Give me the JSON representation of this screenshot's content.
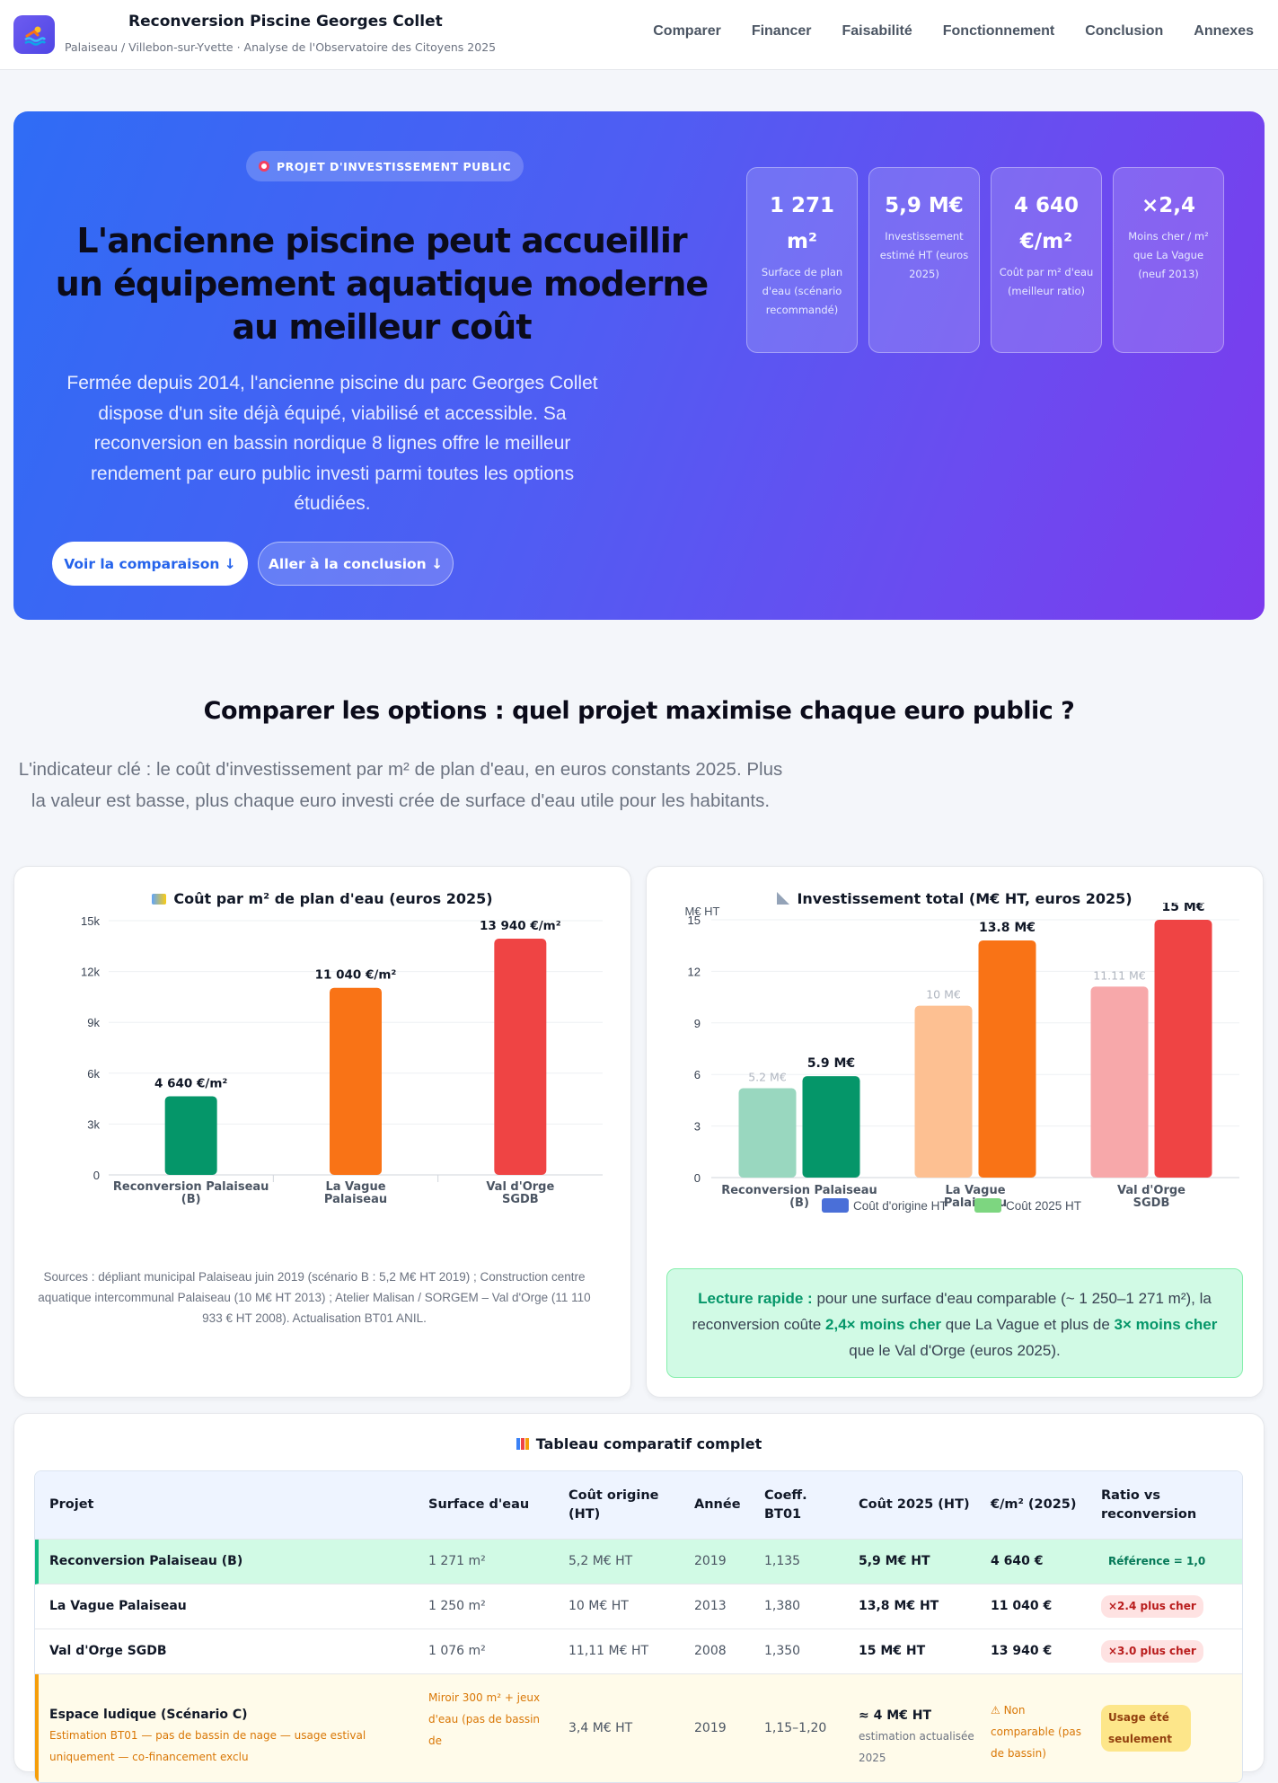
{
  "header": {
    "title": "Reconversion Piscine Georges Collet",
    "subtitle": "Palaiseau / Villebon-sur-Yvette · Analyse de l'Observatoire des Citoyens 2025",
    "nav": [
      "Comparer",
      "Financer",
      "Faisabilité",
      "Fonctionnement",
      "Conclusion",
      "Annexes"
    ]
  },
  "hero": {
    "badge": "PROJET D'INVESTISSEMENT PUBLIC",
    "title": "L'ancienne piscine peut accueillir un équipement aquatique moderne au meilleur coût",
    "text": "Fermée depuis 2014, l'ancienne piscine du parc Georges Collet dispose d'un site déjà équipé, viabilisé et accessible. Sa reconversion en bassin nordique 8 lignes offre le meilleur rendement par euro public investi parmi toutes les options étudiées.",
    "btn_primary": "Voir la comparaison ↓",
    "btn_secondary": "Aller à la conclusion ↓",
    "stats": [
      {
        "value": "1 271 m²",
        "label": "Surface de plan d'eau (scénario recommandé)"
      },
      {
        "value": "5,9 M€",
        "label": "Investissement estimé HT (euros 2025)"
      },
      {
        "value": "4 640 €/m²",
        "label": "Coût par m² d'eau (meilleur ratio)"
      },
      {
        "value": "×2,4",
        "label": "Moins cher / m² que La Vague (neuf 2013)"
      }
    ]
  },
  "compare": {
    "title": "Comparer les options : quel projet maximise chaque euro public ?",
    "subtitle": "L'indicateur clé : le coût d'investissement par m² de plan d'eau, en euros constants 2025. Plus la valeur est basse, plus chaque euro investi crée de surface d'eau utile pour les habitants."
  },
  "chart1_title": "Coût par m² de plan d'eau (euros 2025)",
  "chart2_title": "Investissement total (M€ HT, euros 2025)",
  "chart_data": [
    {
      "type": "bar",
      "title": "Coût par m² de plan d'eau (euros 2025)",
      "categories": [
        "Reconversion Palaiseau (B)",
        "La Vague Palaiseau",
        "Val d'Orge SGDB"
      ],
      "values": [
        4640,
        11040,
        13940
      ],
      "data_labels": [
        "4 640 €/m²",
        "11 040 €/m²",
        "13 940 €/m²"
      ],
      "colors": [
        "#059669",
        "#f97316",
        "#ef4444"
      ],
      "ylim": [
        0,
        15000
      ],
      "yticks": [
        "0",
        "3k",
        "6k",
        "9k",
        "12k",
        "15k"
      ]
    },
    {
      "type": "bar",
      "title": "Investissement total (M€ HT, euros 2025)",
      "ylabel": "M€ HT",
      "categories": [
        "Reconversion Palaiseau (B)",
        "La Vague Palaiseau",
        "Val d'Orge SGDB"
      ],
      "series": [
        {
          "name": "Coût d'origine HT",
          "values": [
            5.2,
            10,
            11.11
          ],
          "labels": [
            "5.2 M€",
            "10 M€",
            "11.11 M€"
          ]
        },
        {
          "name": "Coût 2025 HT",
          "values": [
            5.9,
            13.8,
            15
          ],
          "labels": [
            "5.9 M€",
            "13.8 M€",
            "15 M€"
          ]
        }
      ],
      "colors_origin": [
        "#99d7bf",
        "#fdc092",
        "#f7a8aa"
      ],
      "colors_2025": [
        "#059669",
        "#f97316",
        "#ef4444"
      ],
      "legend_colors": [
        "#4a6fd8",
        "#7dd680"
      ],
      "ylim": [
        0,
        15
      ],
      "yticks": [
        "0",
        "3",
        "6",
        "9",
        "12",
        "15"
      ],
      "legend": "bottom"
    }
  ],
  "sources": "Sources : dépliant municipal Palaiseau juin 2019 (scénario B : 5,2 M€ HT 2019) ; Construction centre aquatique intercommunal Palaiseau (10 M€ HT 2013) ; Atelier Malisan / SORGEM – Val d'Orge (11 110 933 € HT 2008). Actualisation BT01 ANIL.",
  "callout": {
    "lead": "Lecture rapide :",
    "t1": " pour une surface d'eau comparable (~ 1 250–1 271 m²), la reconversion coûte ",
    "b1": "2,4× moins cher",
    "t2": " que La Vague et plus de ",
    "b2": "3× moins cher",
    "t3": " que le Val d'Orge (euros 2025)."
  },
  "table": {
    "title": "Tableau comparatif complet",
    "headers": [
      "Projet",
      "Surface d'eau",
      "Coût origine (HT)",
      "Année",
      "Coeff. BT01",
      "Coût 2025 (HT)",
      "€/m² (2025)",
      "Ratio vs reconversion"
    ],
    "rows": [
      {
        "projet": "Reconversion Palaiseau (B)",
        "surface": "1 271 m²",
        "origine": "5,2 M€ HT",
        "annee": "2019",
        "coeff": "1,135",
        "cout2025": "5,9 M€ HT",
        "m2": "4 640 €",
        "ratio": "Référence = 1,0"
      },
      {
        "projet": "La Vague Palaiseau",
        "surface": "1 250 m²",
        "origine": "10 M€ HT",
        "annee": "2013",
        "coeff": "1,380",
        "cout2025": "13,8 M€ HT",
        "m2": "11 040 €",
        "ratio": "×2.4 plus cher"
      },
      {
        "projet": "Val d'Orge SGDB",
        "surface": "1 076 m²",
        "origine": "11,11 M€ HT",
        "annee": "2008",
        "coeff": "1,350",
        "cout2025": "15 M€ HT",
        "m2": "13 940 €",
        "ratio": "×3.0 plus cher"
      }
    ],
    "warn_row": {
      "projet": "Espace ludique (Scénario C)",
      "note": "Estimation BT01 — pas de bassin de nage — usage estival uniquement — co-financement exclu",
      "surface": "Miroir 300 m² + jeux d'eau (pas de bassin de",
      "origine": "3,4 M€ HT",
      "annee": "2019",
      "coeff": "1,15–1,20",
      "cout2025": "≈ 4 M€ HT",
      "cout2025_note": "estimation actualisée 2025",
      "m2": "⚠ Non comparable (pas de bassin)",
      "ratio": "Usage été seulement"
    }
  }
}
